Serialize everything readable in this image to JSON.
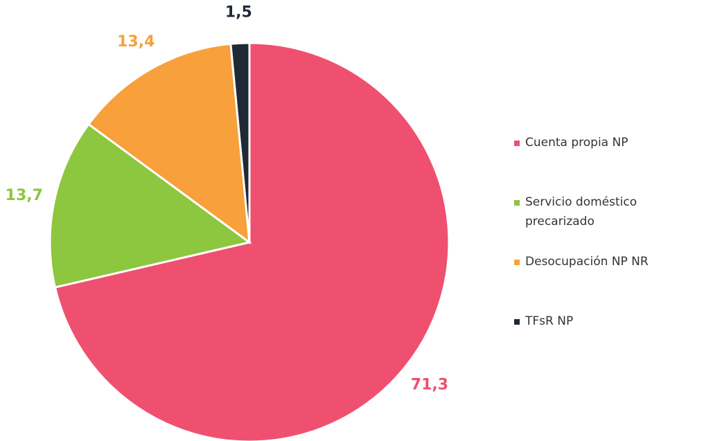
{
  "chart_data": {
    "type": "pie",
    "categories": [
      "Cuenta propia NP",
      "Servicio doméstico precarizado",
      "Desocupación NP NR",
      "TFsR NP"
    ],
    "values": [
      71.3,
      13.7,
      13.4,
      1.5
    ],
    "value_labels": [
      "71,3",
      "13,7",
      "13,4",
      "1,5"
    ],
    "colors": [
      "#ef506f",
      "#8dc63f",
      "#f7a03c",
      "#1f2a36"
    ]
  }
}
